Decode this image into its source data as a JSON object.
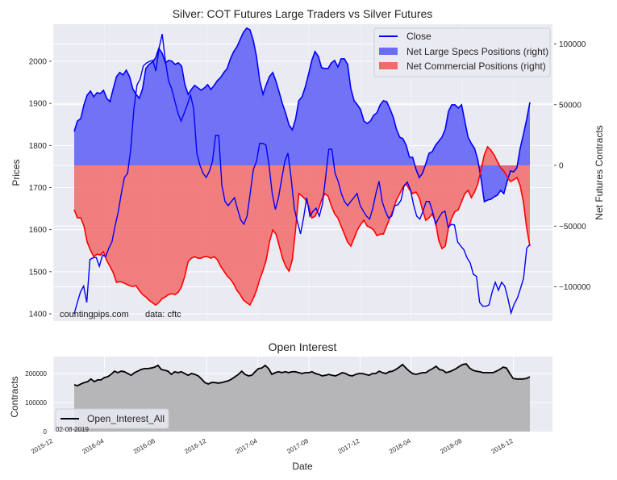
{
  "chart_data": [
    {
      "type": "line",
      "title": "Silver: COT Futures Large Traders vs Silver Futures",
      "ylabel": "Prices",
      "ylabel_right": "Net Futures Contracts",
      "ylim": [
        1385,
        2080
      ],
      "ylim_right": [
        -128000,
        116000
      ],
      "yticks": [
        1400,
        1500,
        1600,
        1700,
        1800,
        1900,
        2000
      ],
      "yticks_right": [
        100000,
        50000,
        0,
        -50000,
        -100000
      ],
      "ytick_labels_right": [
        "100000",
        "50000",
        "0",
        "−50000",
        "−100000"
      ],
      "x_range": [
        "2016-02",
        "2019-02"
      ],
      "grid": true,
      "legend_position": "top-right",
      "annotation_left": "countingpips.com",
      "annotation_right": "data: cftc",
      "series": [
        {
          "name": "Close",
          "axis": "left",
          "kind": "line",
          "color": "#0000ff",
          "values": [
            1400,
            1427,
            1452,
            1466,
            1427,
            1529,
            1533,
            1534,
            1513,
            1540,
            1536,
            1556,
            1571,
            1609,
            1642,
            1686,
            1724,
            1734,
            1791,
            1887,
            1944,
            1958,
            1989,
            1996,
            2000,
            2002,
            1977,
            2031,
            2065,
            2002,
            1954,
            1935,
            1906,
            1877,
            1858,
            1877,
            1897,
            1920,
            1887,
            1782,
            1753,
            1734,
            1724,
            1739,
            1762,
            1824,
            1824,
            1705,
            1667,
            1657,
            1667,
            1676,
            1648,
            1623,
            1613,
            1632,
            1686,
            1743,
            1762,
            1805,
            1805,
            1801,
            1753,
            1686,
            1648,
            1676,
            1720,
            1762,
            1782,
            1724,
            1651,
            1619,
            1590,
            1628,
            1676,
            1632,
            1644,
            1651,
            1632,
            1661,
            1724,
            1791,
            1791,
            1734,
            1715,
            1686,
            1667,
            1657,
            1667,
            1676,
            1686,
            1657,
            1644,
            1632,
            1625,
            1651,
            1686,
            1715,
            1667,
            1644,
            1628,
            1632,
            1657,
            1659,
            1670,
            1705,
            1713,
            1695,
            1659,
            1632,
            1625,
            1644,
            1667,
            1667,
            1644,
            1613,
            1628,
            1640,
            1644,
            1605,
            1613,
            1611,
            1571,
            1561,
            1552,
            1533,
            1521,
            1494,
            1489,
            1427,
            1418,
            1418,
            1421,
            1452,
            1475,
            1456,
            1475,
            1466,
            1437,
            1402,
            1423,
            1437,
            1460,
            1485,
            1556,
            1565
          ]
        },
        {
          "name": "Net Large Specs Positions (right)",
          "axis": "right",
          "kind": "area",
          "color": "#0000ff",
          "fill": "#6b6bf5",
          "values": [
            27930,
            36575,
            38570,
            49875,
            57855,
            61180,
            56525,
            59850,
            59185,
            61845,
            55195,
            52535,
            63175,
            73150,
            76475,
            74480,
            78470,
            73150,
            63175,
            58520,
            55195,
            63175,
            79800,
            83125,
            85120,
            88445,
            96425,
            92435,
            84455,
            86450,
            85785,
            83125,
            84455,
            81795,
            66500,
            58520,
            62510,
            65835,
            63840,
            61845,
            63840,
            66500,
            62510,
            65835,
            69825,
            72485,
            76475,
            79800,
            87780,
            93765,
            97755,
            103740,
            109725,
            113050,
            111720,
            103075,
            89775,
            69825,
            58520,
            66500,
            73150,
            76475,
            69160,
            59850,
            50540,
            42560,
            33250,
            29260,
            37905,
            53200,
            56525,
            64505,
            75145,
            86450,
            93765,
            89775,
            80465,
            79800,
            79800,
            84455,
            86450,
            81130,
            87780,
            87780,
            83125,
            63175,
            53200,
            49875,
            45885,
            36575,
            34580,
            36575,
            41230,
            43225,
            49875,
            53200,
            52535,
            46550,
            39900,
            29925,
            23275,
            21945,
            16625,
            6650,
            6650,
            -3325,
            -9975,
            -6650,
            1330,
            9975,
            11305,
            16625,
            19950,
            23275,
            29925,
            44555,
            49875,
            49875,
            47215,
            49875,
            36575,
            23275,
            17955,
            13965,
            4655,
            -11305,
            -29925,
            -28595,
            -27930,
            -25935,
            -24605,
            -20615,
            -23275,
            -13300,
            -4655,
            -5320,
            -1995,
            13965,
            25270,
            37905,
            51870
          ]
        },
        {
          "name": "Net Commercial Positions (right)",
          "axis": "right",
          "kind": "area",
          "color": "#ff0000",
          "fill": "#f26b6b",
          "values": [
            -36575,
            -43225,
            -43225,
            -49875,
            -63175,
            -69825,
            -75145,
            -73150,
            -73815,
            -71155,
            -78470,
            -83125,
            -88445,
            -96425,
            -95760,
            -96425,
            -97755,
            -99085,
            -99750,
            -99085,
            -103075,
            -106400,
            -108395,
            -111055,
            -113050,
            -115045,
            -113050,
            -109725,
            -108395,
            -106400,
            -105735,
            -106400,
            -104405,
            -99750,
            -91105,
            -79135,
            -76475,
            -75145,
            -76475,
            -76475,
            -75145,
            -75145,
            -76475,
            -75145,
            -77805,
            -83125,
            -87115,
            -91105,
            -93765,
            -97755,
            -103075,
            -106400,
            -111055,
            -113050,
            -115045,
            -109725,
            -103075,
            -93765,
            -86450,
            -77805,
            -63175,
            -53200,
            -56525,
            -66500,
            -76475,
            -83125,
            -87115,
            -77805,
            -53200,
            -23275,
            -25270,
            -27930,
            -33250,
            -43225,
            -41895,
            -36575,
            -28595,
            -23275,
            -25270,
            -33250,
            -39900,
            -43225,
            -49875,
            -56525,
            -63175,
            -66500,
            -59850,
            -53200,
            -48545,
            -45220,
            -49875,
            -51205,
            -53200,
            -57855,
            -56525,
            -56525,
            -49875,
            -43225,
            -36575,
            -28595,
            -23275,
            -17955,
            -15295,
            -19950,
            -23275,
            -21945,
            -26600,
            -36575,
            -45220,
            -43225,
            -39900,
            -46550,
            -61845,
            -68495,
            -66500,
            -51205,
            -43225,
            -37905,
            -36575,
            -29925,
            -23275,
            -20615,
            -26600,
            -21945,
            -15295,
            -3325,
            8645,
            15295,
            12635,
            8645,
            3325,
            -1995,
            -4655,
            -9310,
            -13300,
            -11970,
            -9975,
            -16625,
            -29925,
            -51205,
            -66500
          ]
        }
      ]
    },
    {
      "type": "area",
      "title": "Open Interest",
      "xlabel": "Date",
      "ylabel": "Contracts",
      "ylim": [
        0,
        250000
      ],
      "yticks": [
        0,
        100000,
        200000
      ],
      "ytick_labels": [
        "0",
        "100000",
        "200000"
      ],
      "xticks": [
        "2015-12",
        "2016-04",
        "2016-08",
        "2016-12",
        "2017-04",
        "2017-08",
        "2017-12",
        "2018-04",
        "2018-08",
        "2018-12"
      ],
      "x_range": [
        "2015-12",
        "2019-03"
      ],
      "data_start": "2016-02",
      "data_end": "2019-02",
      "grid": true,
      "legend_position": "lower-left",
      "date_stamp": "02-08-2019",
      "series": [
        {
          "name": "Open_Interest_All",
          "color": "#000000",
          "fill": "#b3b3b5",
          "values": [
            161000,
            158000,
            164000,
            169000,
            172000,
            181000,
            172000,
            178000,
            178000,
            186000,
            189000,
            197000,
            208000,
            203000,
            208000,
            206000,
            200000,
            194000,
            203000,
            208000,
            214000,
            217000,
            217000,
            219000,
            222000,
            228000,
            214000,
            211000,
            208000,
            197000,
            206000,
            203000,
            206000,
            200000,
            194000,
            200000,
            197000,
            192000,
            181000,
            169000,
            164000,
            169000,
            169000,
            167000,
            169000,
            172000,
            175000,
            181000,
            189000,
            197000,
            208000,
            197000,
            192000,
            194000,
            206000,
            217000,
            219000,
            228000,
            217000,
            197000,
            203000,
            206000,
            203000,
            206000,
            203000,
            206000,
            206000,
            203000,
            200000,
            203000,
            203000,
            206000,
            200000,
            197000,
            192000,
            194000,
            197000,
            194000,
            192000,
            197000,
            203000,
            200000,
            194000,
            192000,
            197000,
            200000,
            200000,
            197000,
            194000,
            200000,
            200000,
            208000,
            203000,
            200000,
            206000,
            208000,
            214000,
            222000,
            231000,
            219000,
            208000,
            200000,
            197000,
            200000,
            203000,
            203000,
            211000,
            217000,
            225000,
            214000,
            211000,
            203000,
            206000,
            211000,
            217000,
            225000,
            231000,
            233000,
            219000,
            211000,
            208000,
            206000,
            203000,
            203000,
            203000,
            203000,
            208000,
            214000,
            222000,
            219000,
            200000,
            183000,
            181000,
            181000,
            181000,
            183000,
            189000
          ]
        }
      ]
    }
  ]
}
